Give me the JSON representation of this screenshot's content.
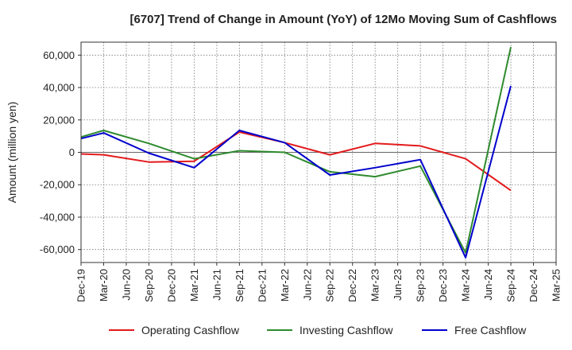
{
  "chart_data": {
    "type": "line",
    "title": "[6707]  Trend of Change in Amount (YoY) of 12Mo Moving Sum of Cashflows",
    "xlabel": "",
    "ylabel": "Amount (million yen)",
    "ylim": [
      -68000,
      68000
    ],
    "yticks": [
      60000,
      40000,
      20000,
      0,
      -20000,
      -40000,
      -60000
    ],
    "ytick_labels": [
      "60,000",
      "40,000",
      "20,000",
      "0",
      "-20,000",
      "-40,000",
      "-60,000"
    ],
    "categories": [
      "Dec-19",
      "Mar-20",
      "Jun-20",
      "Sep-20",
      "Dec-20",
      "Mar-21",
      "Jun-21",
      "Sep-21",
      "Dec-21",
      "Mar-22",
      "Jun-22",
      "Sep-22",
      "Dec-22",
      "Mar-23",
      "Jun-23",
      "Sep-23",
      "Dec-23",
      "Mar-24",
      "Jun-24",
      "Sep-24",
      "Dec-24",
      "Mar-25"
    ],
    "grid": true,
    "legend_position": "bottom",
    "series": [
      {
        "name": "Operating Cashflow",
        "color": "#e31a1c",
        "values": [
          -1000,
          -1500,
          null,
          -6000,
          null,
          -5500,
          null,
          12500,
          null,
          6000,
          null,
          -1500,
          null,
          5500,
          null,
          4000,
          null,
          -4000,
          null,
          -23500,
          null,
          null
        ]
      },
      {
        "name": "Investing Cashflow",
        "color": "#2e8b2e",
        "values": [
          9500,
          13500,
          null,
          5500,
          null,
          -4000,
          null,
          1000,
          null,
          0,
          null,
          -12000,
          null,
          -15000,
          null,
          -8500,
          null,
          -62000,
          null,
          65000,
          null,
          null
        ]
      },
      {
        "name": "Free Cashflow",
        "color": "#0000cc",
        "values": [
          8500,
          12000,
          null,
          -500,
          null,
          -9500,
          null,
          13500,
          null,
          6000,
          null,
          -14000,
          null,
          -9500,
          null,
          -4500,
          null,
          -65000,
          null,
          41000,
          null,
          null
        ]
      }
    ]
  }
}
